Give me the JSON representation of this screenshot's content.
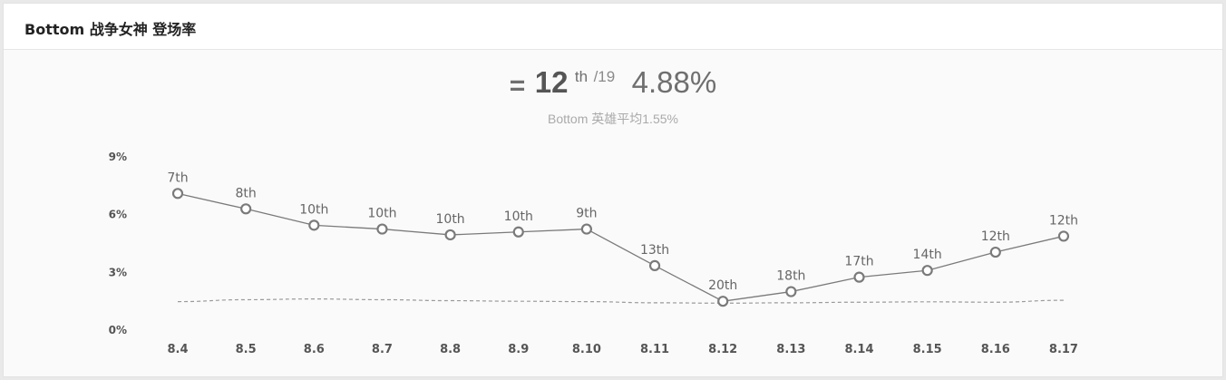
{
  "header": {
    "title": "Bottom 战争女神 登场率"
  },
  "summary": {
    "trend_icon": "equal-trend-icon",
    "trend_symbol": "=",
    "rank": "12",
    "rank_suffix": "th",
    "rank_total": "/19",
    "rate": "4.88%",
    "average_text": "Bottom 英雄平均1.55%"
  },
  "colors": {
    "line": "#7a7a7a",
    "point_fill": "#ffffff",
    "average_line": "#9a9a9a",
    "text": "#555555"
  },
  "chart_data": {
    "type": "line",
    "categories": [
      "8.4",
      "8.5",
      "8.6",
      "8.7",
      "8.8",
      "8.9",
      "8.10",
      "8.11",
      "8.12",
      "8.13",
      "8.14",
      "8.15",
      "8.16",
      "8.17"
    ],
    "series": [
      {
        "values": [
          7.1,
          6.3,
          5.45,
          5.25,
          4.95,
          5.1,
          5.25,
          3.35,
          1.5,
          2.0,
          2.75,
          3.1,
          4.05,
          4.88
        ],
        "labels": [
          "7th",
          "8th",
          "10th",
          "10th",
          "10th",
          "10th",
          "9th",
          "13th",
          "20th",
          "18th",
          "17th",
          "14th",
          "12th",
          "12th"
        ]
      },
      {
        "style": "dashed",
        "values": [
          1.48,
          1.58,
          1.62,
          1.58,
          1.53,
          1.5,
          1.48,
          1.42,
          1.4,
          1.42,
          1.45,
          1.47,
          1.45,
          1.55
        ]
      }
    ],
    "yticks": [
      "0%",
      "3%",
      "6%",
      "9%"
    ],
    "ytick_values": [
      0,
      3,
      6,
      9
    ],
    "ylim": [
      0,
      9
    ],
    "grid": false
  }
}
